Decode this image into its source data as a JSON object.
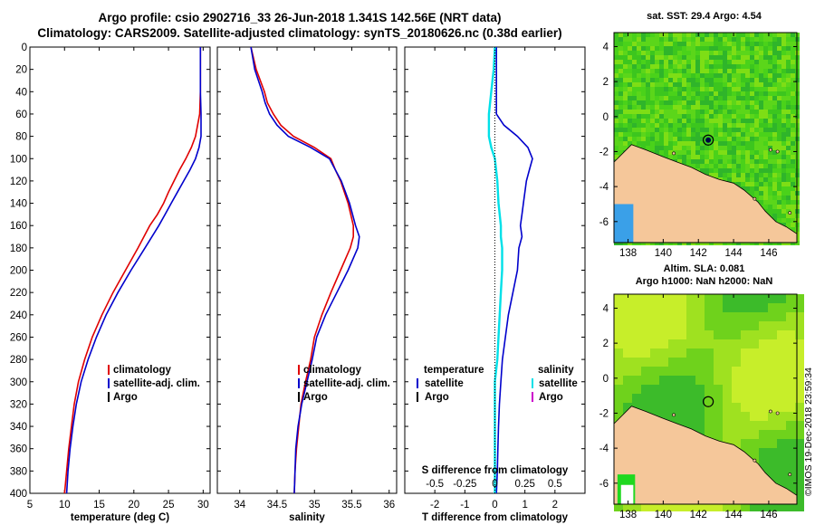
{
  "title_line1": "Argo profile: csio 2902716_33 26-Jun-2018 1.341S 142.56E (NRT data)",
  "title_line2": "Climatology: CARS2009. Satellite-adjusted climatology: synTS_20180626.nc (0.38d earlier)",
  "imos_stamp": "©IMOS 19-Dec-2018 23:59:34",
  "colors": {
    "climatology": "#e00000",
    "satellite": "#0000cc",
    "argo": "#000000",
    "s_satellite": "#00e0e8",
    "s_argo": "#cc00cc",
    "land": "#f5c79a",
    "sea_green": "#3fc81e"
  },
  "chart_data": [
    {
      "id": "temperature",
      "type": "line",
      "xlabel": "temperature (deg C)",
      "ylabel": "",
      "xlim": [
        5,
        31
      ],
      "ylim": [
        400,
        0
      ],
      "xticks": [
        5,
        10,
        15,
        20,
        25,
        30
      ],
      "yticks": [
        0,
        20,
        40,
        60,
        80,
        100,
        120,
        140,
        160,
        180,
        200,
        220,
        240,
        260,
        280,
        300,
        320,
        340,
        360,
        380,
        400
      ],
      "legend": [
        "climatology",
        "satellite-adj. clim.",
        "Argo"
      ],
      "series": [
        {
          "name": "climatology",
          "color_key": "climatology",
          "depth": [
            0,
            20,
            40,
            60,
            70,
            80,
            90,
            100,
            110,
            120,
            130,
            140,
            150,
            160,
            180,
            200,
            220,
            240,
            260,
            280,
            300,
            320,
            340,
            360,
            380,
            400
          ],
          "values": [
            29.6,
            29.6,
            29.6,
            29.5,
            29.2,
            28.9,
            28.3,
            27.5,
            26.6,
            25.8,
            25.0,
            24.3,
            23.4,
            22.3,
            20.6,
            18.8,
            17.0,
            15.4,
            14.0,
            12.9,
            12.0,
            11.4,
            11.0,
            10.6,
            10.3,
            10.0
          ]
        },
        {
          "name": "satellite-adj. clim.",
          "color_key": "satellite",
          "depth": [
            0,
            20,
            40,
            60,
            80,
            90,
            100,
            110,
            120,
            130,
            140,
            150,
            160,
            180,
            200,
            220,
            240,
            260,
            280,
            300,
            320,
            340,
            360,
            380,
            400
          ],
          "values": [
            29.6,
            29.6,
            29.6,
            29.7,
            29.7,
            29.4,
            28.9,
            28.1,
            27.2,
            26.3,
            25.4,
            24.5,
            23.6,
            21.6,
            19.6,
            17.7,
            16.0,
            14.6,
            13.4,
            12.4,
            11.7,
            11.2,
            10.8,
            10.5,
            10.3
          ]
        },
        {
          "name": "Argo",
          "color_key": "argo",
          "depth": [],
          "values": []
        }
      ]
    },
    {
      "id": "salinity",
      "type": "line",
      "xlabel": "salinity",
      "xlim": [
        33.7,
        36.1
      ],
      "ylim": [
        400,
        0
      ],
      "xticks": [
        34,
        34.5,
        35,
        35.5,
        36
      ],
      "legend": [
        "climatology",
        "satellite-adj. clim.",
        "Argo"
      ],
      "series": [
        {
          "name": "climatology",
          "color_key": "climatology",
          "depth": [
            0,
            20,
            40,
            50,
            60,
            70,
            80,
            90,
            100,
            110,
            120,
            140,
            160,
            170,
            180,
            200,
            220,
            240,
            260,
            280,
            300,
            320,
            340,
            360,
            380,
            400
          ],
          "values": [
            34.15,
            34.22,
            34.33,
            34.37,
            34.45,
            34.55,
            34.72,
            35.0,
            35.22,
            35.28,
            35.35,
            35.45,
            35.52,
            35.52,
            35.48,
            35.35,
            35.22,
            35.1,
            35.0,
            34.95,
            34.88,
            34.82,
            34.79,
            34.76,
            34.74,
            34.73
          ]
        },
        {
          "name": "satellite-adj. clim.",
          "color_key": "satellite",
          "depth": [
            0,
            20,
            40,
            50,
            60,
            70,
            80,
            90,
            100,
            110,
            120,
            140,
            160,
            170,
            180,
            200,
            220,
            240,
            260,
            280,
            300,
            320,
            340,
            360,
            380,
            400
          ],
          "values": [
            34.15,
            34.2,
            34.3,
            34.34,
            34.4,
            34.5,
            34.65,
            34.95,
            35.2,
            35.28,
            35.36,
            35.47,
            35.55,
            35.6,
            35.58,
            35.45,
            35.3,
            35.15,
            35.03,
            34.97,
            34.9,
            34.83,
            34.78,
            34.75,
            34.74,
            34.73
          ]
        },
        {
          "name": "Argo",
          "color_key": "argo",
          "depth": [],
          "values": []
        }
      ]
    },
    {
      "id": "difference",
      "type": "line",
      "xlabel": "T difference from climatology",
      "xlabel_top": "S difference from climatology",
      "xlim": [
        -3,
        3
      ],
      "ylim": [
        400,
        0
      ],
      "xticks": [
        -2,
        -1,
        0,
        1,
        2
      ],
      "xticks_top": [
        -0.5,
        -0.25,
        0,
        0.25,
        0.5
      ],
      "xticks_top_labels": [
        "-0.5",
        "-0.25",
        "0",
        "0.25",
        "0.5"
      ],
      "legend_left_title": "temperature",
      "legend_left": [
        "satellite",
        "Argo"
      ],
      "legend_right_title": "salinity",
      "legend_right": [
        "satellite",
        "Argo"
      ],
      "series": [
        {
          "name": "T satellite",
          "color_key": "satellite",
          "depth": [
            0,
            20,
            40,
            60,
            70,
            80,
            90,
            100,
            110,
            120,
            140,
            150,
            160,
            170,
            180,
            200,
            220,
            240,
            260,
            280,
            300,
            320,
            340,
            360,
            380,
            400
          ],
          "values": [
            0.05,
            0.05,
            0.05,
            0.05,
            0.3,
            0.75,
            1.1,
            1.25,
            1.15,
            1.05,
            0.95,
            0.9,
            0.85,
            0.9,
            0.8,
            0.75,
            0.6,
            0.45,
            0.35,
            0.25,
            0.2,
            0.15,
            0.12,
            0.1,
            0.08,
            0.05
          ]
        },
        {
          "name": "S satellite",
          "color_key": "s_satellite",
          "depth": [
            0,
            20,
            40,
            60,
            80,
            90,
            100,
            120,
            140,
            160,
            170,
            180,
            200,
            220,
            240,
            260,
            280,
            300,
            320,
            340,
            360,
            380,
            400
          ],
          "values": [
            0.0,
            -0.01,
            -0.03,
            -0.05,
            -0.05,
            -0.03,
            0.0,
            0.02,
            0.03,
            0.05,
            0.05,
            0.06,
            0.06,
            0.05,
            0.04,
            0.03,
            0.02,
            0.0,
            0.0,
            0.0,
            0.0,
            0.0,
            0.0
          ]
        }
      ]
    }
  ],
  "maps": [
    {
      "id": "sst",
      "title1": "sat. SST: 29.4 Argo: 4.54",
      "title2": "",
      "xlim": [
        137.2,
        147.6
      ],
      "ylim": [
        -7.2,
        4.8
      ],
      "xticks": [
        138,
        140,
        142,
        144,
        146
      ],
      "yticks": [
        4,
        2,
        0,
        -2,
        -4,
        -6
      ],
      "argo_position": {
        "lon": 142.56,
        "lat": -1.341
      }
    },
    {
      "id": "sla",
      "title1": "Altim. SLA: 0.081",
      "title2": "Argo h1000: NaN h2000: NaN",
      "xlim": [
        137.2,
        147.6
      ],
      "ylim": [
        -7.2,
        4.8
      ],
      "xticks": [
        138,
        140,
        142,
        144,
        146
      ],
      "yticks": [
        4,
        2,
        0,
        -2,
        -4,
        -6
      ],
      "argo_position": {
        "lon": 142.56,
        "lat": -1.341
      }
    }
  ]
}
